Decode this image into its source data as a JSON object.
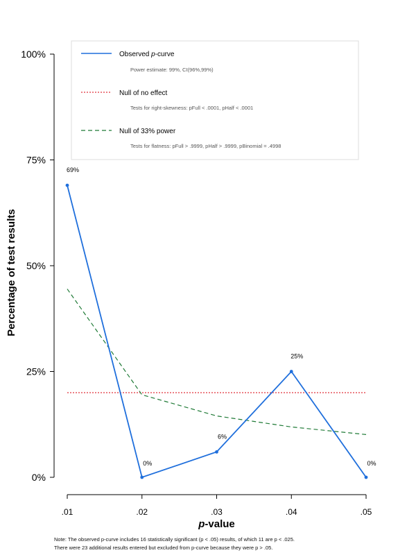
{
  "chart_data": {
    "type": "line",
    "x": [
      0.01,
      0.02,
      0.03,
      0.04,
      0.05
    ],
    "x_tick_labels": [
      ".01",
      ".02",
      ".03",
      ".04",
      ".05"
    ],
    "xlabel_italic": "p",
    "xlabel_rest": "-value",
    "ylabel": "Percentage of test results",
    "ylim": [
      0,
      100
    ],
    "y_ticks": [
      0,
      25,
      50,
      75,
      100
    ],
    "y_tick_labels": [
      "0%",
      "25%",
      "50%",
      "75%",
      "100%"
    ],
    "series": [
      {
        "name": "Observed p-curve",
        "values": [
          69,
          0,
          6,
          25,
          0
        ],
        "data_labels": [
          "69%",
          "0%",
          "6%",
          "25%",
          "0%"
        ],
        "color": "#1f6fdc",
        "style": "solid"
      },
      {
        "name": "Null of no effect",
        "values": [
          20,
          20,
          20,
          20,
          20
        ],
        "color": "#e0303a",
        "style": "dotted"
      },
      {
        "name": "Null of 33% power",
        "values": [
          44.5,
          19.5,
          14.5,
          11.9,
          10.1
        ],
        "color": "#1f7a36",
        "style": "dashed"
      }
    ],
    "legend": {
      "placement": "top",
      "entries": [
        {
          "prefix": "Observed ",
          "italic": "p",
          "suffix": "-curve",
          "detail": "Power estimate: 99%, CI(96%,99%)"
        },
        {
          "prefix": "Null of no effect",
          "italic": "",
          "suffix": "",
          "detail": "Tests for right-skewness: pFull < .0001, pHalf < .0001"
        },
        {
          "prefix": "Null of 33% power",
          "italic": "",
          "suffix": "",
          "detail": "Tests for flatness: pFull > .9999, pHalf > .9999, pBinomial = .4998"
        }
      ]
    }
  },
  "note": {
    "line1": "Note: The observed p-curve includes 16 statistically significant (p < .05) results, of which 11 are p < .025.",
    "line2": "There were 23 additional results entered but excluded from p-curve because they were p > .05."
  }
}
